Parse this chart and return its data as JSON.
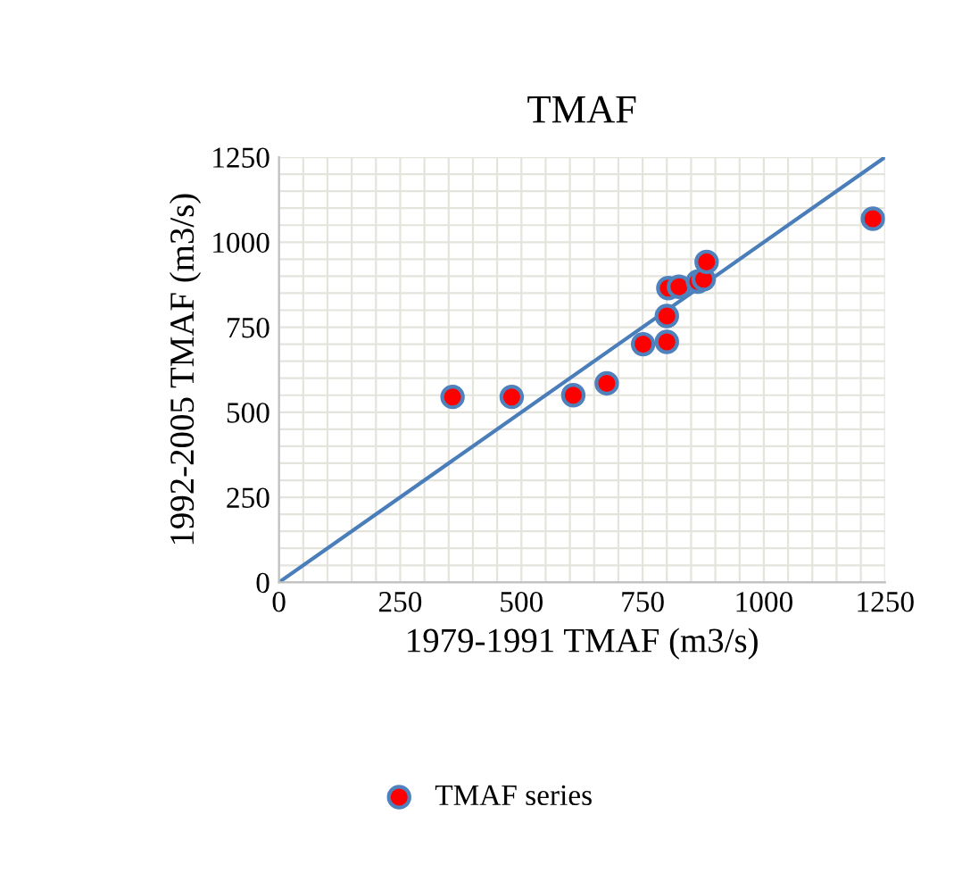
{
  "chart_data": {
    "type": "scatter",
    "title": "TMAF",
    "xlabel": "1979-1991 TMAF (m3/s)",
    "ylabel": "1992-2005 TMAF (m3/s)",
    "xlim": [
      0,
      1250
    ],
    "ylim": [
      0,
      1250
    ],
    "xticks": [
      0,
      250,
      500,
      750,
      1000,
      1250
    ],
    "yticks": [
      0,
      250,
      500,
      750,
      1000,
      1250
    ],
    "grid": true,
    "legend": "bottom",
    "series": [
      {
        "name": "TMAF series",
        "marker": "circle",
        "color": "#ff0000",
        "x": [
          358,
          480,
          607,
          676,
          751,
          800,
          800,
          803,
          825,
          864,
          876,
          882,
          1225
        ],
        "values": [
          545,
          545,
          550,
          585,
          700,
          707,
          783,
          865,
          869,
          884,
          891,
          942,
          1069
        ]
      },
      {
        "type": "line",
        "color": "#4a7ebb",
        "x": [
          0,
          1250
        ],
        "values": [
          0,
          1250
        ]
      }
    ]
  }
}
